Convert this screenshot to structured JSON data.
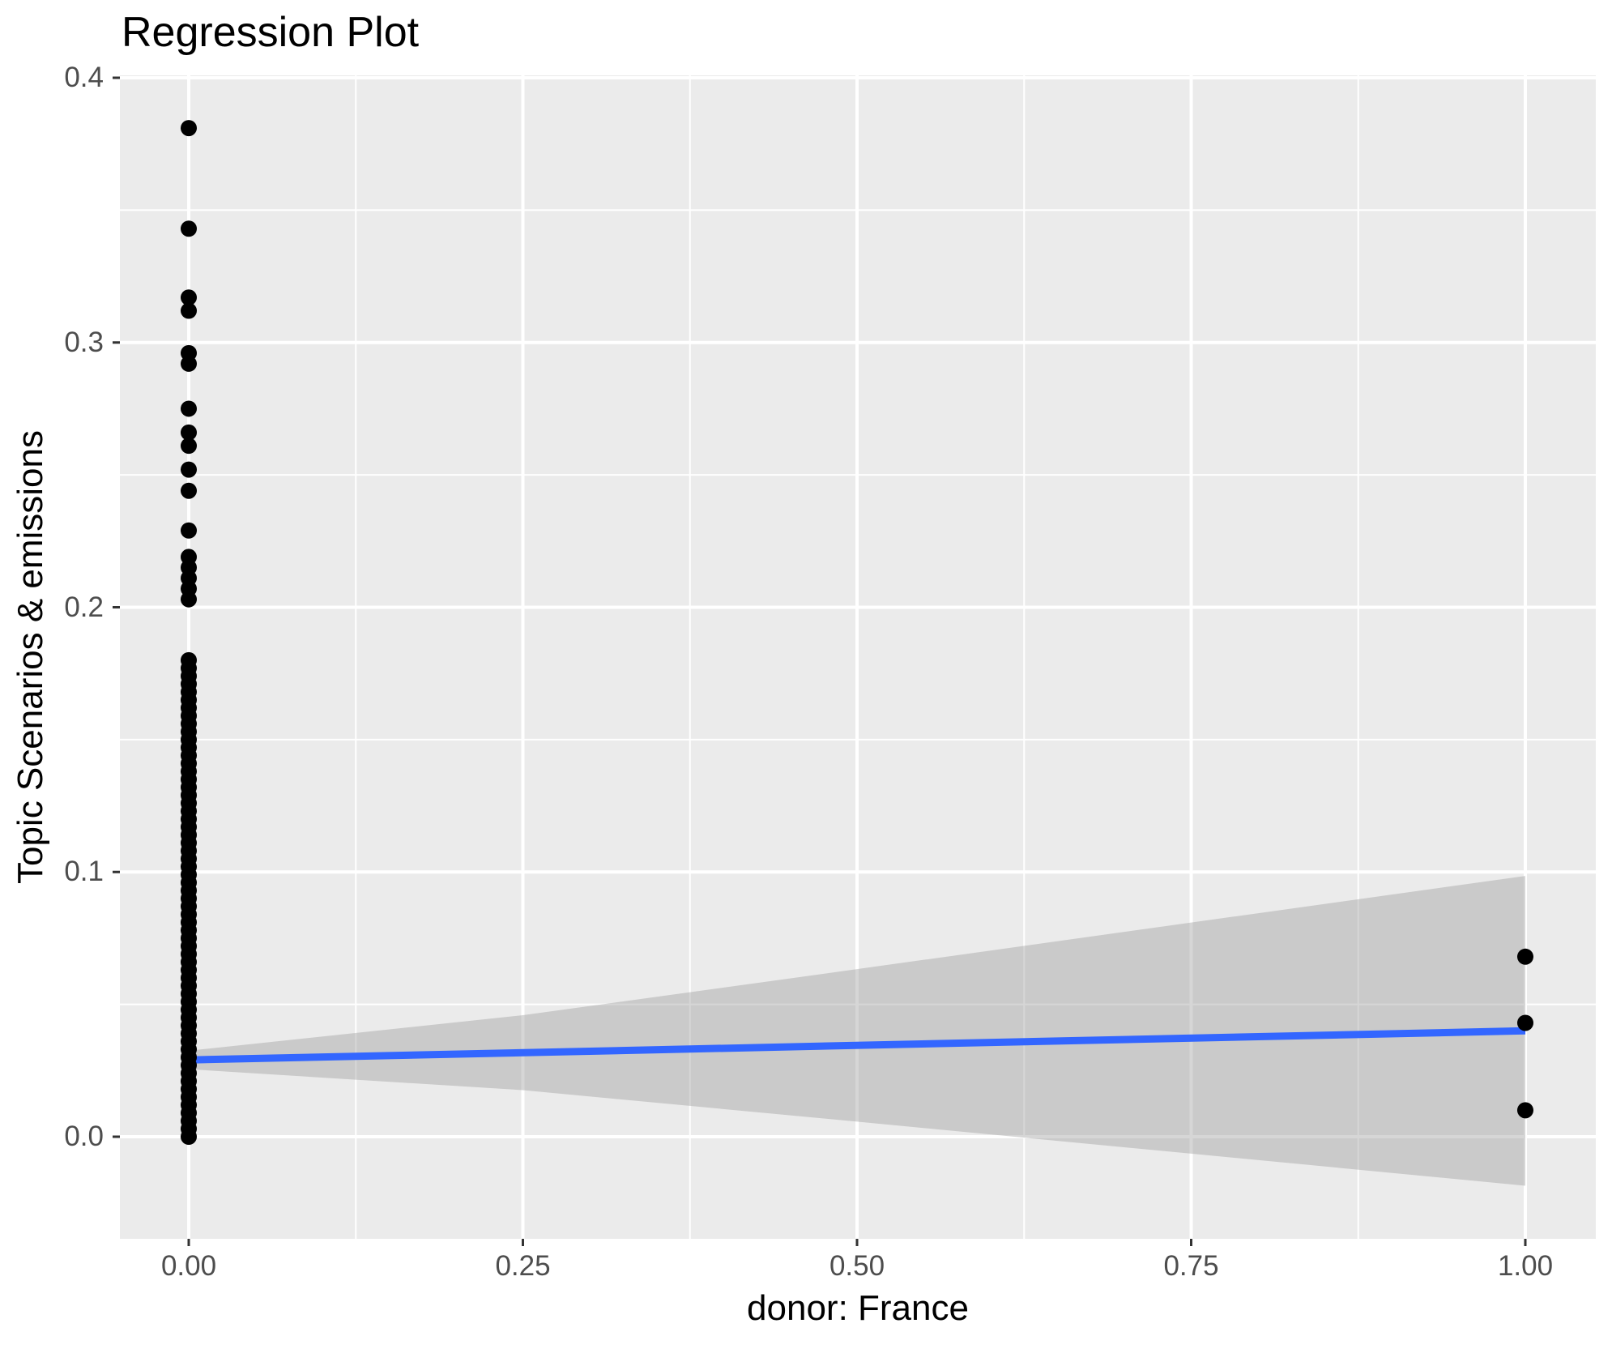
{
  "page": {
    "background": "#FFFFFF"
  },
  "chart_data": {
    "type": "scatter",
    "title": "Regression Plot",
    "xlabel": "donor: France",
    "ylabel": "Topic Scenarios & emissions",
    "legend": "none",
    "grid": {
      "major": true,
      "minor": true,
      "color": "#FFFFFF"
    },
    "xlim": [
      -0.0515,
      1.0527
    ],
    "ylim": [
      -0.0386,
      0.401
    ],
    "x_ticks": {
      "values": [
        0.0,
        0.25,
        0.5,
        0.75,
        1.0
      ],
      "labels": [
        "0.00",
        "0.25",
        "0.50",
        "0.75",
        "1.00"
      ]
    },
    "y_ticks": {
      "values": [
        0.0,
        0.1,
        0.2,
        0.3,
        0.4
      ],
      "labels": [
        "0.0",
        "0.1",
        "0.2",
        "0.3",
        "0.4"
      ]
    },
    "series": [
      {
        "name": "observations at donor=0",
        "x": 0.0,
        "y": [
          0.0,
          0.003,
          0.006,
          0.009,
          0.012,
          0.015,
          0.018,
          0.021,
          0.024,
          0.027,
          0.03,
          0.033,
          0.036,
          0.039,
          0.042,
          0.045,
          0.048,
          0.051,
          0.054,
          0.057,
          0.06,
          0.063,
          0.066,
          0.069,
          0.072,
          0.075,
          0.078,
          0.081,
          0.084,
          0.087,
          0.09,
          0.093,
          0.096,
          0.099,
          0.102,
          0.105,
          0.108,
          0.111,
          0.114,
          0.117,
          0.12,
          0.123,
          0.126,
          0.129,
          0.132,
          0.135,
          0.138,
          0.141,
          0.144,
          0.147,
          0.15,
          0.153,
          0.156,
          0.159,
          0.162,
          0.165,
          0.168,
          0.171,
          0.174,
          0.177,
          0.18,
          0.203,
          0.207,
          0.211,
          0.215,
          0.219,
          0.229,
          0.244,
          0.252,
          0.261,
          0.266,
          0.275,
          0.292,
          0.296,
          0.312,
          0.317,
          0.343,
          0.381
        ]
      },
      {
        "name": "observations at donor=1",
        "x": 1.0,
        "y": [
          0.068,
          0.043,
          0.01
        ]
      }
    ],
    "regression_line": {
      "x": [
        0.0,
        1.0
      ],
      "y": [
        0.029,
        0.04
      ],
      "color": "#3366FF",
      "width": 9
    },
    "confidence_band": {
      "x": [
        0.0,
        0.25,
        0.5,
        0.75,
        1.0
      ],
      "upper": [
        0.0325,
        0.0459,
        0.0633,
        0.0809,
        0.0985
      ],
      "lower": [
        0.0255,
        0.0176,
        0.0057,
        -0.0064,
        -0.0185
      ],
      "fill": "rgba(153,153,153,0.4)"
    },
    "colors": {
      "point": "#000000",
      "panel_background": "#EBEBEB",
      "gridline": "#FFFFFF",
      "tick_mark": "#333333",
      "tick_text": "#4D4D4D",
      "axis_title_text": "#000000",
      "title_text": "#000000"
    },
    "point_radius_px": 10
  }
}
